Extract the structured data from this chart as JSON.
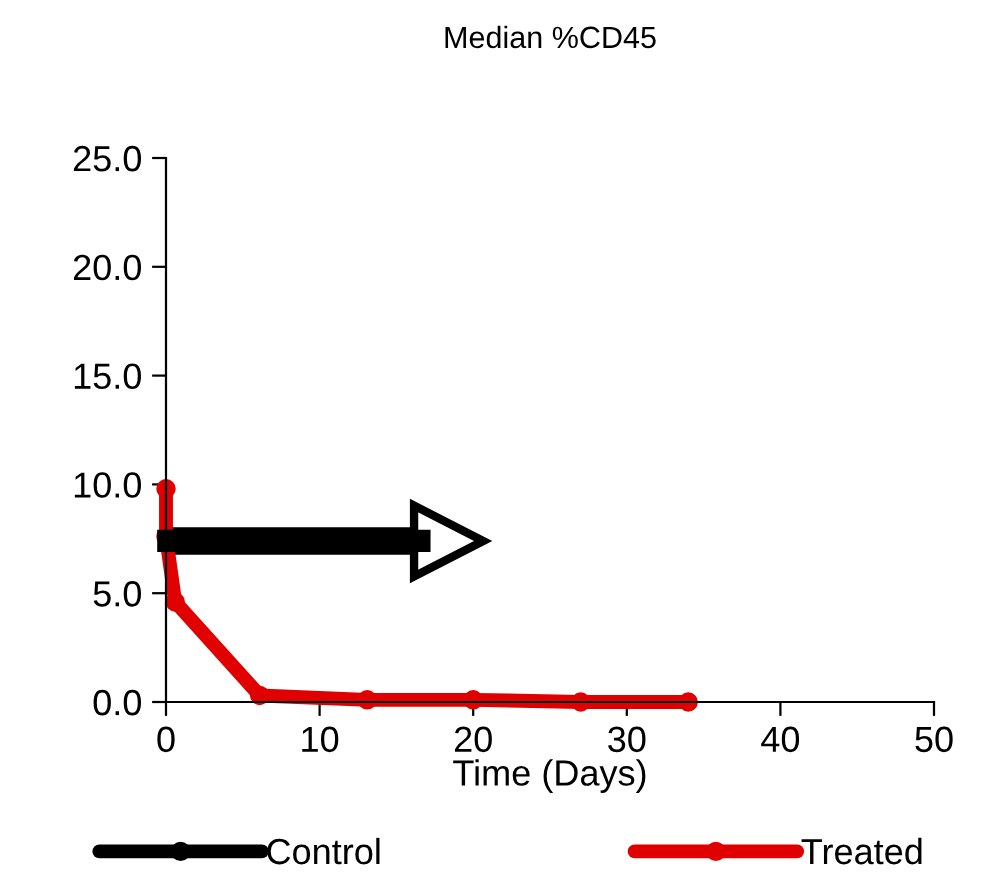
{
  "chart_data": {
    "type": "line",
    "title": "Median %CD45",
    "xlabel": "Time (Days)",
    "xlim": [
      0,
      50
    ],
    "xticks": [
      0,
      10,
      20,
      30,
      40,
      50
    ],
    "ylim": [
      0,
      25
    ],
    "yticks": [
      {
        "value": 0,
        "label": "0.0"
      },
      {
        "value": 5,
        "label": "5.0"
      },
      {
        "value": 10,
        "label": "10.0"
      },
      {
        "value": 15,
        "label": "15.0"
      },
      {
        "value": 20,
        "label": "20.0"
      },
      {
        "value": 25,
        "label": "25.0"
      }
    ],
    "grid": false,
    "legend": "bottom",
    "marker": "circle",
    "line_style": "solid",
    "series": [
      {
        "name": "Control",
        "color": "#000000"
      },
      {
        "name": "Treated",
        "color": "#e00000",
        "x": [
          0,
          0,
          0.6,
          6.1,
          13.1,
          20,
          27,
          34
        ],
        "values": [
          9.8,
          7.6,
          4.6,
          0.3,
          0.1,
          0.1,
          0.0,
          0.0
        ]
      }
    ]
  }
}
